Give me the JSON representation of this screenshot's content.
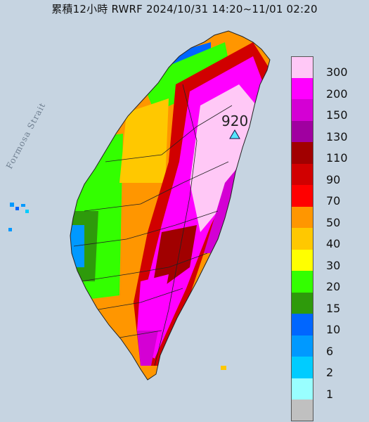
{
  "title": "累積12小時 RWRF 2024/10/31 14:20~11/01 02:20",
  "strait_label": "Formosa Strait",
  "max_label": "920",
  "legend": {
    "items": [
      {
        "label": "300",
        "color": "#ffc8f6"
      },
      {
        "label": "200",
        "color": "#ff00ff"
      },
      {
        "label": "150",
        "color": "#d400d4"
      },
      {
        "label": "130",
        "color": "#a000a0"
      },
      {
        "label": "110",
        "color": "#a10000"
      },
      {
        "label": "90",
        "color": "#d10000"
      },
      {
        "label": "70",
        "color": "#ff0000"
      },
      {
        "label": "50",
        "color": "#ff9600"
      },
      {
        "label": "40",
        "color": "#ffc800"
      },
      {
        "label": "30",
        "color": "#ffff00"
      },
      {
        "label": "20",
        "color": "#33ff00"
      },
      {
        "label": "15",
        "color": "#2e9a0b"
      },
      {
        "label": "10",
        "color": "#0066ff"
      },
      {
        "label": "6",
        "color": "#0099ff"
      },
      {
        "label": "2",
        "color": "#00ccff"
      },
      {
        "label": "1",
        "color": "#99ffff"
      },
      {
        "label": "",
        "color": "#c0c0c0"
      }
    ]
  }
}
